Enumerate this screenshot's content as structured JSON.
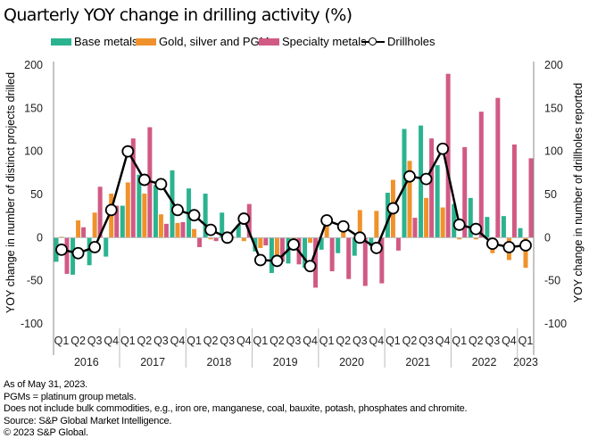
{
  "title": "Quarterly YOY change in drilling activity (%)",
  "legend": [
    {
      "name": "Base metals",
      "color": "#2bb38f",
      "kind": "bar"
    },
    {
      "name": "Gold, silver and PGMs",
      "color": "#f0922b",
      "kind": "bar"
    },
    {
      "name": "Specialty metals",
      "color": "#d15a85",
      "kind": "bar"
    },
    {
      "name": "Drillholes",
      "color": "#000000",
      "kind": "line"
    }
  ],
  "notes": [
    "As of May 31, 2023.",
    "PGMs = platinum group metals.",
    "Does not include bulk commodities, e.g., iron ore, manganese, coal, bauxite, potash, phosphates and chromite.",
    "Source: S&P Global Market Intelligence.",
    "© 2023 S&P Global."
  ],
  "chart_data": {
    "type": "bar",
    "title": "Quarterly YOY change in drilling activity (%)",
    "xlabel": "",
    "ylabel": "YOY change in number of distinct projects drilled",
    "y2label": "YOY change in number of drillholes reported",
    "ylim": [
      -100,
      200
    ],
    "y2lim": [
      -100,
      200
    ],
    "yticks": [
      200,
      150,
      100,
      50,
      0,
      -50,
      -100
    ],
    "grid": false,
    "legend_position": "top",
    "categories": [
      "Q1",
      "Q2",
      "Q3",
      "Q4",
      "Q1",
      "Q2",
      "Q3",
      "Q4",
      "Q1",
      "Q2",
      "Q3",
      "Q4",
      "Q1",
      "Q2",
      "Q3",
      "Q4",
      "Q1",
      "Q2",
      "Q3",
      "Q4",
      "Q1",
      "Q2",
      "Q3",
      "Q4",
      "Q1",
      "Q2",
      "Q3",
      "Q4",
      "Q1"
    ],
    "year_groups": [
      {
        "label": "2016",
        "count": 4
      },
      {
        "label": "2017",
        "count": 4
      },
      {
        "label": "2018",
        "count": 4
      },
      {
        "label": "2019",
        "count": 4
      },
      {
        "label": "2020",
        "count": 4
      },
      {
        "label": "2021",
        "count": 4
      },
      {
        "label": "2022",
        "count": 4
      },
      {
        "label": "2023",
        "count": 1
      }
    ],
    "series": [
      {
        "name": "Base metals",
        "type": "bar",
        "axis": "left",
        "color": "#2bb38f",
        "values": [
          -28,
          -43,
          -32,
          -22,
          37,
          73,
          61,
          78,
          57,
          51,
          29,
          15,
          -16,
          -41,
          -30,
          -35,
          -14,
          -18,
          -21,
          -10,
          52,
          126,
          130,
          84,
          39,
          46,
          24,
          25,
          11
        ]
      },
      {
        "name": "Gold, silver and PGMs",
        "type": "bar",
        "axis": "left",
        "color": "#f0922b",
        "values": [
          1,
          20,
          29,
          51,
          64,
          51,
          27,
          17,
          10,
          -2,
          1,
          -4,
          -12,
          -21,
          -3,
          -6,
          15,
          7,
          32,
          31,
          67,
          89,
          46,
          35,
          -2,
          -2,
          -18,
          -26,
          -35
        ]
      },
      {
        "name": "Specialty metals",
        "type": "bar",
        "axis": "left",
        "color": "#d15a85",
        "values": [
          -42,
          12,
          59,
          37,
          115,
          128,
          16,
          18,
          -11,
          -4,
          1,
          39,
          -9,
          -28,
          -31,
          -58,
          -39,
          -48,
          -56,
          -53,
          -15,
          23,
          115,
          190,
          105,
          146,
          162,
          108,
          92
        ]
      },
      {
        "name": "Drillholes",
        "type": "line",
        "axis": "right",
        "color": "#000000",
        "values": [
          -14,
          -18,
          -11,
          32,
          100,
          67,
          62,
          32,
          26,
          9,
          0,
          22,
          -26,
          -27,
          -8,
          -33,
          20,
          13,
          0,
          -12,
          34,
          71,
          68,
          103,
          15,
          10,
          -7,
          -11,
          -9
        ]
      }
    ]
  }
}
